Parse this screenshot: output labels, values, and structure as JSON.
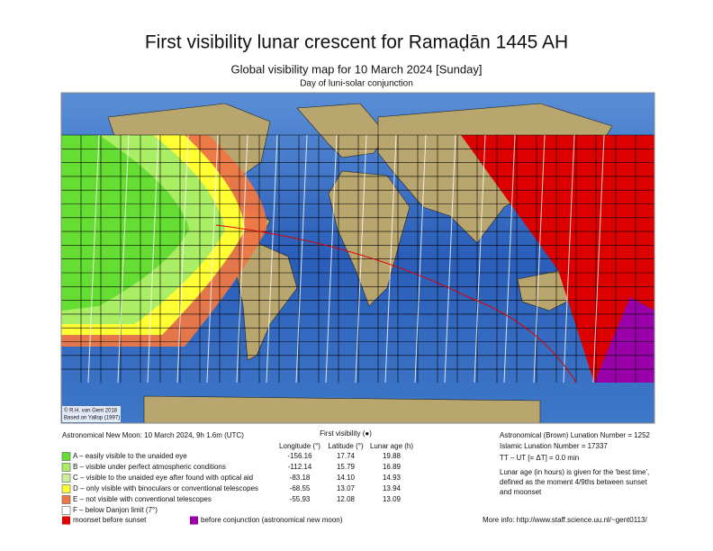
{
  "header": {
    "title": "First visibility lunar crescent for Ramaḍān 1445 AH",
    "subtitle": "Global visibility map for 10 March 2024 [Sunday]",
    "caption": "Day of luni-solar conjunction"
  },
  "map": {
    "credits": [
      "© R.H. van Gent 2018",
      "Based on Yallop (1997)"
    ]
  },
  "info": {
    "new_moon": "Astronomical New Moon: 10 March 2024, 9h 1.6m (UTC)",
    "first_visibility": "First visibility (●)",
    "columns": [
      "Longitude (°)",
      "Latitude (°)",
      "Lunar age (h)"
    ],
    "legend": [
      {
        "label": "A – easily visible to the unaided eye",
        "color": "#66dd33",
        "values": [
          "-156.16",
          "17.74",
          "19.88"
        ]
      },
      {
        "label": "B – visible under perfect atmospheric conditions",
        "color": "#aaee66",
        "values": [
          "-112.14",
          "15.79",
          "16.89"
        ]
      },
      {
        "label": "C – visible to the unaided eye after found with optical aid",
        "color": "#ccf099",
        "values": [
          "-83.18",
          "14.10",
          "14.93"
        ]
      },
      {
        "label": "D – only visible with binoculars or conventional telescopes",
        "color": "#ffff33",
        "values": [
          "-68.55",
          "13.07",
          "13.94"
        ]
      },
      {
        "label": "E – not visible with conventional telescopes",
        "color": "#ee7744",
        "values": [
          "-55.93",
          "12.08",
          "13.09"
        ]
      },
      {
        "label": "F – below Danjon limit (7°)",
        "color": "#ffffff"
      }
    ],
    "extra_legend": [
      {
        "label": "moonset before sunset",
        "color": "#dd0000"
      },
      {
        "label": "before conjunction (astronomical new moon)",
        "color": "#9900aa"
      }
    ],
    "right": [
      "Astronomical (Brown) Lunation Number = 1252",
      "Islamic Lunation Number = 17337",
      "TT – UT [= ΔT] = 0.0 min"
    ],
    "note_lines": [
      "Lunar age (in hours) is given for the 'best time',",
      "defined as the moment 4/9ths between sunset",
      "and moonset"
    ],
    "more_info": "More info: http://www.staff.science.uu.nl/~gent0113/"
  }
}
